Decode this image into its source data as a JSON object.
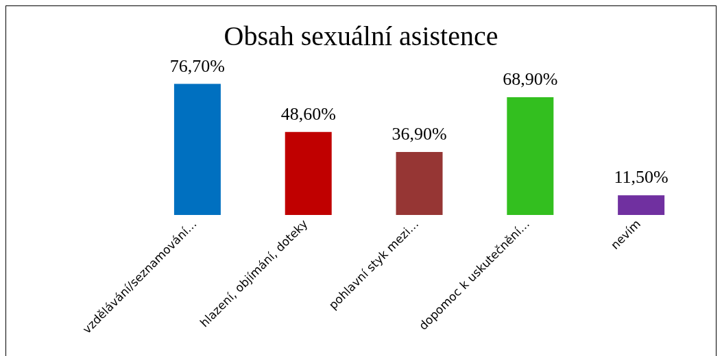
{
  "chart_data": {
    "type": "bar",
    "title": "Obsah sexuální asistence",
    "categories": [
      "vzdělávání/seznamování…",
      "hlazení, objímání, doteky",
      "pohlavní styk mezi…",
      "dopomoc k uskutečnění…",
      "nevím"
    ],
    "values": [
      76.7,
      48.6,
      36.9,
      68.9,
      11.5
    ],
    "colors": [
      "#0070c0",
      "#c00000",
      "#963634",
      "#33bf1f",
      "#7030a0"
    ],
    "value_labels": [
      "76,70%",
      "48,60%",
      "36,90%",
      "68,90%",
      "11,50%"
    ],
    "grid": false,
    "legend": false
  }
}
